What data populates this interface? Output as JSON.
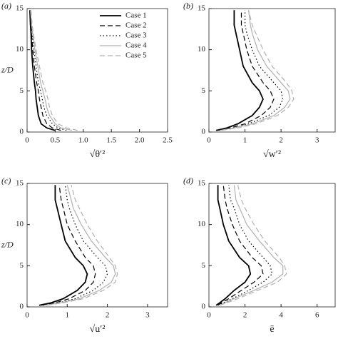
{
  "chart_data": [
    {
      "type": "line",
      "panel": "(a)",
      "xlabel": "√θ′²",
      "ylabel": "z/D",
      "xlim": [
        0,
        2.5
      ],
      "xticks": [
        0,
        0.5,
        {
          "value": 1.0,
          "label": "1.0"
        },
        1.5,
        {
          "value": 2.0,
          "label": "2.0"
        },
        2.5
      ],
      "ylim": [
        0,
        15
      ],
      "yticks": [
        0,
        5,
        10,
        15
      ],
      "legend": "upper right",
      "y": [
        0.2,
        0.5,
        1,
        2,
        3,
        4,
        5,
        6,
        8,
        10,
        12,
        13,
        14.8
      ],
      "series": [
        {
          "name": "Case 1",
          "color": "#000000",
          "dash": "solid",
          "values": [
            0.5,
            0.35,
            0.25,
            0.2,
            0.18,
            0.16,
            0.15,
            0.13,
            0.1,
            0.08,
            0.07,
            0.06,
            0.05
          ]
        },
        {
          "name": "Case 2",
          "color": "#000000",
          "dash": "dashed",
          "values": [
            0.6,
            0.45,
            0.35,
            0.28,
            0.25,
            0.22,
            0.2,
            0.17,
            0.13,
            0.1,
            0.08,
            0.07,
            0.06
          ]
        },
        {
          "name": "Case 3",
          "color": "#000000",
          "dash": "dotted",
          "values": [
            0.7,
            0.55,
            0.45,
            0.35,
            0.3,
            0.27,
            0.24,
            0.2,
            0.16,
            0.12,
            0.09,
            0.08,
            0.06
          ]
        },
        {
          "name": "Case 4",
          "color": "#b0b0b0",
          "dash": "solid",
          "values": [
            0.8,
            0.6,
            0.5,
            0.4,
            0.35,
            0.32,
            0.28,
            0.24,
            0.19,
            0.14,
            0.1,
            0.08,
            0.06
          ]
        },
        {
          "name": "Case 5",
          "color": "#b0b0b0",
          "dash": "dashed",
          "values": [
            0.9,
            0.7,
            0.55,
            0.45,
            0.4,
            0.37,
            0.33,
            0.28,
            0.22,
            0.16,
            0.11,
            0.09,
            0.07
          ]
        }
      ]
    },
    {
      "type": "line",
      "panel": "(b)",
      "xlabel": "√w′²",
      "xlim": [
        0,
        3.5
      ],
      "xticks": [
        0,
        1,
        2,
        3
      ],
      "ylim": [
        0,
        15
      ],
      "yticks": [
        0,
        5,
        10,
        15
      ],
      "y": [
        0.2,
        0.5,
        1,
        2,
        3,
        4,
        5,
        6,
        8,
        10,
        12,
        13,
        14.8
      ],
      "series": [
        {
          "color": "#000000",
          "dash": "solid",
          "values": [
            0.2,
            0.5,
            0.8,
            1.2,
            1.4,
            1.5,
            1.4,
            1.2,
            0.95,
            0.85,
            0.75,
            0.7,
            0.7
          ]
        },
        {
          "color": "#000000",
          "dash": "dashed",
          "values": [
            0.25,
            0.6,
            1.0,
            1.45,
            1.7,
            1.8,
            1.7,
            1.5,
            1.2,
            1.05,
            0.95,
            0.9,
            0.9
          ]
        },
        {
          "color": "#000000",
          "dash": "dotted",
          "values": [
            0.3,
            0.7,
            1.1,
            1.65,
            1.95,
            2.05,
            2.0,
            1.8,
            1.4,
            1.2,
            1.05,
            1.0,
            1.0
          ]
        },
        {
          "color": "#b0b0b0",
          "dash": "solid",
          "values": [
            0.3,
            0.7,
            1.2,
            1.8,
            2.1,
            2.25,
            2.2,
            2.0,
            1.6,
            1.35,
            1.2,
            1.15,
            1.1
          ]
        },
        {
          "color": "#b0b0b0",
          "dash": "dashed",
          "values": [
            0.35,
            0.8,
            1.3,
            1.9,
            2.2,
            2.35,
            2.3,
            2.15,
            1.75,
            1.5,
            1.3,
            1.2,
            1.1
          ]
        }
      ]
    },
    {
      "type": "line",
      "panel": "(c)",
      "xlabel": "√u′²",
      "ylabel": "z/D",
      "xlim": [
        0,
        3.5
      ],
      "xticks": [
        0,
        1,
        2,
        3
      ],
      "ylim": [
        0,
        15
      ],
      "yticks": [
        0,
        5,
        10,
        15
      ],
      "y": [
        0.2,
        0.5,
        1,
        2,
        3,
        4,
        5,
        6,
        8,
        10,
        12,
        13,
        14.8
      ],
      "series": [
        {
          "color": "#000000",
          "dash": "solid",
          "values": [
            0.3,
            0.6,
            0.9,
            1.25,
            1.45,
            1.5,
            1.4,
            1.2,
            0.95,
            0.85,
            0.75,
            0.7,
            0.7
          ]
        },
        {
          "color": "#000000",
          "dash": "dashed",
          "values": [
            0.35,
            0.7,
            1.05,
            1.45,
            1.65,
            1.7,
            1.65,
            1.45,
            1.2,
            1.0,
            0.9,
            0.85,
            0.8
          ]
        },
        {
          "color": "#000000",
          "dash": "dotted",
          "values": [
            0.4,
            0.8,
            1.2,
            1.65,
            1.9,
            2.0,
            1.95,
            1.75,
            1.4,
            1.2,
            1.05,
            1.0,
            0.95
          ]
        },
        {
          "color": "#b0b0b0",
          "dash": "solid",
          "values": [
            0.45,
            0.85,
            1.3,
            1.8,
            2.1,
            2.2,
            2.15,
            1.95,
            1.6,
            1.35,
            1.15,
            1.1,
            1.0
          ]
        },
        {
          "color": "#b0b0b0",
          "dash": "dashed",
          "values": [
            0.5,
            0.9,
            1.4,
            1.9,
            2.2,
            2.25,
            2.2,
            2.05,
            1.75,
            1.5,
            1.3,
            1.2,
            1.1
          ]
        }
      ]
    },
    {
      "type": "line",
      "panel": "(d)",
      "xlabel": "ē",
      "xlim": [
        0,
        7
      ],
      "xticks": [
        0,
        2,
        4,
        6
      ],
      "ylim": [
        0,
        15
      ],
      "yticks": [
        0,
        5,
        10,
        15
      ],
      "y": [
        0.2,
        0.5,
        1,
        2,
        3,
        4,
        5,
        6,
        8,
        10,
        12,
        13,
        14.8
      ],
      "series": [
        {
          "color": "#000000",
          "dash": "solid",
          "values": [
            0.4,
            0.6,
            0.9,
            1.4,
            2.0,
            2.3,
            2.2,
            1.7,
            1.1,
            0.8,
            0.6,
            0.5,
            0.5
          ]
        },
        {
          "color": "#000000",
          "dash": "dashed",
          "values": [
            0.5,
            0.7,
            1.1,
            1.8,
            2.5,
            3.0,
            2.9,
            2.4,
            1.7,
            1.3,
            1.0,
            0.9,
            0.8
          ]
        },
        {
          "color": "#000000",
          "dash": "dotted",
          "values": [
            0.5,
            0.8,
            1.3,
            2.2,
            3.0,
            3.5,
            3.4,
            3.0,
            2.2,
            1.7,
            1.4,
            1.2,
            1.1
          ]
        },
        {
          "color": "#b0b0b0",
          "dash": "solid",
          "values": [
            0.6,
            0.9,
            1.4,
            2.5,
            3.5,
            4.1,
            4.1,
            3.6,
            2.8,
            2.1,
            1.7,
            1.5,
            1.4
          ]
        },
        {
          "color": "#b0b0b0",
          "dash": "dashed",
          "values": [
            0.6,
            1.0,
            1.6,
            2.7,
            3.8,
            4.3,
            4.2,
            3.9,
            3.1,
            2.5,
            2.0,
            1.8,
            1.6
          ]
        }
      ]
    }
  ]
}
